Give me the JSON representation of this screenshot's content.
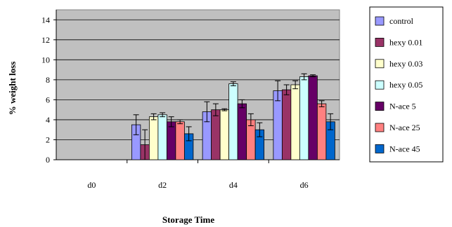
{
  "chart_data": {
    "type": "bar",
    "xlabel": "Storage Time",
    "ylabel": "% weight loss",
    "ylim": [
      0,
      15
    ],
    "ytick_step": 2,
    "grid": true,
    "legend_position": "right",
    "plot_background": "#c0c0c0",
    "categories": [
      "d0",
      "d2",
      "d4",
      "d6"
    ],
    "series": [
      {
        "name": "control",
        "color": "#9999ff",
        "values": [
          0,
          3.5,
          4.8,
          6.9
        ],
        "errors": [
          0,
          1.0,
          1.0,
          1.0
        ]
      },
      {
        "name": "hexy 0.01",
        "color": "#993366",
        "values": [
          0,
          1.5,
          5.0,
          7.0
        ],
        "errors": [
          0,
          1.5,
          0.6,
          0.5
        ]
      },
      {
        "name": "hexy 0.03",
        "color": "#ffffcc",
        "values": [
          0,
          4.3,
          5.0,
          7.5
        ],
        "errors": [
          0,
          0.3,
          0.1,
          0.4
        ]
      },
      {
        "name": "hexy 0.05",
        "color": "#ccffff",
        "values": [
          0,
          4.5,
          7.6,
          8.3
        ],
        "errors": [
          0,
          0.2,
          0.2,
          0.3
        ]
      },
      {
        "name": "N-ace 5",
        "color": "#660066",
        "values": [
          0,
          3.8,
          5.6,
          8.4
        ],
        "errors": [
          0,
          0.5,
          0.4,
          0.1
        ]
      },
      {
        "name": "N-ace 25",
        "color": "#ff8080",
        "values": [
          0,
          3.8,
          4.0,
          5.6
        ],
        "errors": [
          0,
          0.2,
          0.6,
          0.3
        ]
      },
      {
        "name": "N-ace 45",
        "color": "#0066cc",
        "values": [
          0,
          2.6,
          3.0,
          3.8
        ],
        "errors": [
          0,
          0.7,
          0.7,
          0.8
        ]
      }
    ]
  }
}
